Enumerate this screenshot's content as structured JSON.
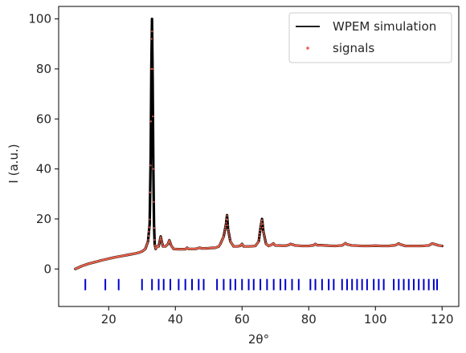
{
  "chart_data": {
    "type": "line",
    "title": "",
    "xlabel": "2θ°",
    "ylabel": "I (a.u.)",
    "xlim": [
      5,
      125
    ],
    "ylim": [
      -15,
      105
    ],
    "xticks": [
      20,
      40,
      60,
      80,
      100,
      120
    ],
    "yticks": [
      0,
      20,
      40,
      60,
      80,
      100
    ],
    "grid": false,
    "legend_placement": "top-right",
    "series": [
      {
        "name": "WPEM simulation",
        "kind": "line",
        "color": "#000000",
        "x": [
          10,
          12,
          14,
          16,
          18,
          20,
          22,
          24,
          26,
          28,
          29,
          30,
          31,
          31.8,
          32.3,
          32.6,
          32.8,
          33.0,
          33.2,
          33.4,
          33.6,
          33.8,
          34.1,
          34.5,
          35,
          35.6,
          35.9,
          36.3,
          37,
          37.8,
          38.2,
          38.7,
          39.5,
          41,
          43,
          43.5,
          44,
          46,
          47.3,
          48,
          50,
          52,
          53,
          53.5,
          54.5,
          55.2,
          55.5,
          55.8,
          56.5,
          57.5,
          58.5,
          59.5,
          60,
          60.5,
          62,
          64,
          65,
          65.6,
          66,
          66.4,
          67.2,
          68,
          69,
          69.4,
          70,
          72,
          73,
          74,
          74.5,
          76,
          78,
          80,
          81.5,
          82,
          82.5,
          84,
          86,
          88,
          90,
          91,
          91.5,
          93,
          96,
          98,
          100,
          102,
          104,
          106,
          107,
          107.5,
          109,
          112,
          114,
          116,
          117,
          117.5,
          119,
          120
        ],
        "y": [
          0,
          1.2,
          2.1,
          2.8,
          3.5,
          4.1,
          4.7,
          5.2,
          5.7,
          6.2,
          6.5,
          7,
          8,
          11,
          18,
          45,
          80,
          100,
          75,
          40,
          18,
          10,
          8,
          9,
          9,
          13,
          11,
          9,
          9,
          10,
          11.5,
          9.5,
          8,
          7.9,
          7.9,
          8.5,
          8,
          8,
          8.5,
          8.2,
          8.3,
          8.5,
          9,
          10,
          13,
          18,
          21.5,
          16,
          11,
          9,
          9,
          9.3,
          10,
          9,
          9,
          9.2,
          11,
          17,
          20,
          15,
          10,
          9.2,
          9.8,
          10.2,
          9.4,
          9.3,
          9.3,
          9.6,
          10,
          9.4,
          9.2,
          9.2,
          9.5,
          10,
          9.5,
          9.5,
          9.3,
          9.2,
          9.4,
          10.3,
          9.8,
          9.4,
          9.2,
          9.2,
          9.3,
          9.2,
          9.2,
          9.5,
          10.2,
          9.8,
          9.2,
          9.2,
          9.2,
          9.4,
          10.2,
          10,
          9.4,
          9.2
        ]
      },
      {
        "name": "signals",
        "kind": "scatter",
        "color": "#e8604a"
      }
    ],
    "peak_markers": {
      "kind": "vertical-ticks",
      "color": "#0000cc",
      "y_range": [
        -8.5,
        -4
      ],
      "x": [
        13,
        19,
        23,
        30,
        33,
        35,
        36.5,
        38.5,
        41,
        43,
        45,
        47,
        48.5,
        52.5,
        54.5,
        56.5,
        58,
        60,
        62,
        63.5,
        65.5,
        67.5,
        69.5,
        71.5,
        73,
        75,
        77,
        80.5,
        82,
        84,
        86,
        87.5,
        90,
        91.5,
        93,
        94.5,
        96,
        97.5,
        99.5,
        101,
        102.5,
        105.5,
        107,
        108.5,
        110,
        111.5,
        113,
        114.5,
        116,
        117.5,
        118.5
      ]
    }
  }
}
